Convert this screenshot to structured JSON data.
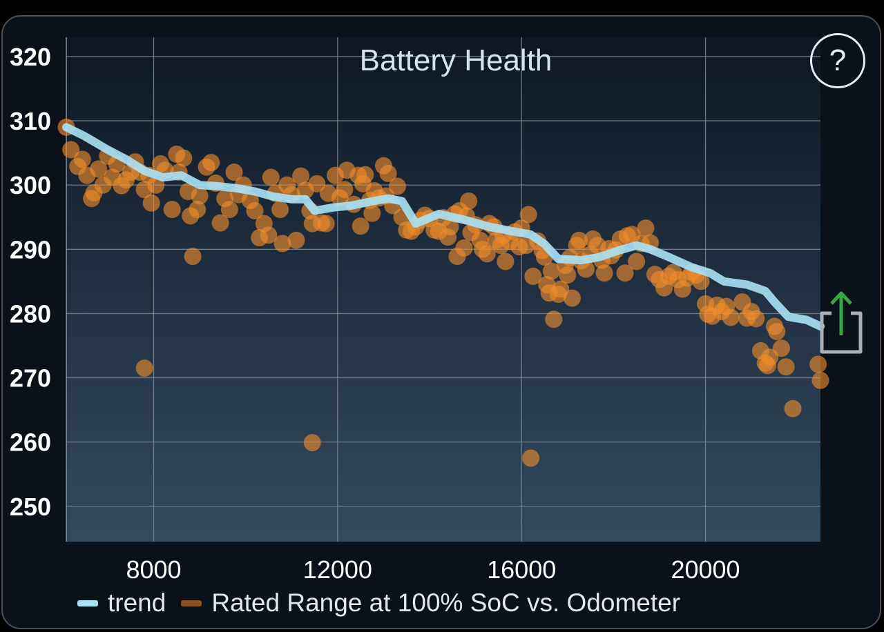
{
  "chart_data": {
    "type": "scatter",
    "title": "Battery Health",
    "xlabel": "",
    "ylabel": "",
    "xlim": [
      6100,
      22500
    ],
    "ylim": [
      244.5,
      323
    ],
    "x_ticks": [
      8000,
      12000,
      16000,
      20000
    ],
    "y_ticks": [
      250,
      260,
      270,
      280,
      290,
      300,
      310,
      320
    ],
    "grid": true,
    "legend_position": "bottom-left",
    "series": [
      {
        "name": "trend",
        "kind": "line",
        "color": "#a8e2f6",
        "points": [
          [
            6100,
            309
          ],
          [
            6500,
            307.6
          ],
          [
            7000,
            305.5
          ],
          [
            7400,
            304
          ],
          [
            7800,
            302.2
          ],
          [
            8200,
            301.2
          ],
          [
            8600,
            301.5
          ],
          [
            9000,
            300
          ],
          [
            9400,
            299.8
          ],
          [
            9800,
            299.5
          ],
          [
            10200,
            299
          ],
          [
            10600,
            298.2
          ],
          [
            11000,
            297.8
          ],
          [
            11300,
            297.8
          ],
          [
            11500,
            296
          ],
          [
            11900,
            296.5
          ],
          [
            12300,
            296.8
          ],
          [
            12700,
            297.4
          ],
          [
            13100,
            297.9
          ],
          [
            13400,
            297.5
          ],
          [
            13700,
            294
          ],
          [
            14200,
            295.5
          ],
          [
            14800,
            294.5
          ],
          [
            15300,
            293.5
          ],
          [
            15800,
            292.8
          ],
          [
            16200,
            292.3
          ],
          [
            16500,
            290.8
          ],
          [
            16800,
            288.5
          ],
          [
            17300,
            288.3
          ],
          [
            17700,
            288.8
          ],
          [
            18100,
            289.8
          ],
          [
            18500,
            290.6
          ],
          [
            18800,
            290
          ],
          [
            19200,
            288.8
          ],
          [
            19700,
            287.2
          ],
          [
            20100,
            286.3
          ],
          [
            20400,
            285
          ],
          [
            20900,
            284.5
          ],
          [
            21300,
            283.5
          ],
          [
            21500,
            281.8
          ],
          [
            21800,
            279.5
          ],
          [
            22200,
            279
          ],
          [
            22500,
            278
          ]
        ]
      },
      {
        "name": "Rated Range at 100% SoC vs. Odometer",
        "kind": "scatter",
        "color": "#f08c2c",
        "points": [
          [
            6100,
            309
          ],
          [
            6200,
            305.5
          ],
          [
            6350,
            302.9
          ],
          [
            6450,
            304
          ],
          [
            6550,
            301.5
          ],
          [
            6650,
            297.9
          ],
          [
            6700,
            298.8
          ],
          [
            6800,
            302.5
          ],
          [
            6900,
            300
          ],
          [
            7000,
            304.5
          ],
          [
            7100,
            301.2
          ],
          [
            7200,
            303.3
          ],
          [
            7300,
            299.9
          ],
          [
            7400,
            300.8
          ],
          [
            7500,
            302
          ],
          [
            7600,
            303.6
          ],
          [
            7700,
            302
          ],
          [
            7800,
            299.3
          ],
          [
            7900,
            301.5
          ],
          [
            7950,
            297.2
          ],
          [
            8050,
            300
          ],
          [
            8150,
            303.3
          ],
          [
            8250,
            302.3
          ],
          [
            8400,
            296.2
          ],
          [
            8500,
            304.8
          ],
          [
            8550,
            302
          ],
          [
            8650,
            304.2
          ],
          [
            8750,
            299
          ],
          [
            8800,
            295.2
          ],
          [
            8850,
            288.9
          ],
          [
            8950,
            296.2
          ],
          [
            9000,
            298.3
          ],
          [
            9150,
            302.8
          ],
          [
            9250,
            303.5
          ],
          [
            9350,
            300.3
          ],
          [
            9450,
            294.1
          ],
          [
            9550,
            297.9
          ],
          [
            9650,
            296.2
          ],
          [
            9750,
            302
          ],
          [
            9850,
            298.5
          ],
          [
            9950,
            300
          ],
          [
            10100,
            297.6
          ],
          [
            10200,
            296
          ],
          [
            10300,
            291.8
          ],
          [
            10400,
            294
          ],
          [
            10500,
            292.2
          ],
          [
            10550,
            301.2
          ],
          [
            10650,
            298.7
          ],
          [
            10750,
            296.2
          ],
          [
            10800,
            290.9
          ],
          [
            10900,
            300
          ],
          [
            11000,
            298.5
          ],
          [
            11100,
            291.4
          ],
          [
            11200,
            301.4
          ],
          [
            11300,
            299.2
          ],
          [
            11400,
            296
          ],
          [
            11450,
            294
          ],
          [
            11550,
            300.2
          ],
          [
            11650,
            294.1
          ],
          [
            11750,
            294
          ],
          [
            11800,
            298.7
          ],
          [
            11950,
            301.5
          ],
          [
            12050,
            298
          ],
          [
            12150,
            299.3
          ],
          [
            12200,
            302.3
          ],
          [
            12350,
            297
          ],
          [
            12450,
            301.5
          ],
          [
            12500,
            293.6
          ],
          [
            12550,
            300.2
          ],
          [
            12600,
            301.6
          ],
          [
            12700,
            297.6
          ],
          [
            12750,
            295.6
          ],
          [
            12800,
            299.1
          ],
          [
            12900,
            298
          ],
          [
            13000,
            303
          ],
          [
            13050,
            298.3
          ],
          [
            13100,
            301.8
          ],
          [
            13200,
            296.8
          ],
          [
            13300,
            299.8
          ],
          [
            13400,
            295
          ],
          [
            13500,
            293
          ],
          [
            13600,
            292.8
          ],
          [
            13700,
            293.5
          ],
          [
            13800,
            294.5
          ],
          [
            13900,
            295.3
          ],
          [
            14000,
            294.8
          ],
          [
            14100,
            293
          ],
          [
            14200,
            292.8
          ],
          [
            14300,
            294.9
          ],
          [
            14400,
            291.9
          ],
          [
            14450,
            293.5
          ],
          [
            14550,
            295.5
          ],
          [
            14600,
            288.9
          ],
          [
            14650,
            296
          ],
          [
            14750,
            290.2
          ],
          [
            14800,
            295.2
          ],
          [
            14850,
            297.5
          ],
          [
            14900,
            292.6
          ],
          [
            15000,
            293.8
          ],
          [
            15100,
            291.4
          ],
          [
            15150,
            290
          ],
          [
            15250,
            289.3
          ],
          [
            15300,
            294
          ],
          [
            15400,
            293.5
          ],
          [
            15450,
            291.4
          ],
          [
            15550,
            290.6
          ],
          [
            15600,
            292.2
          ],
          [
            15650,
            288.1
          ],
          [
            15750,
            291.2
          ],
          [
            15850,
            292.7
          ],
          [
            15950,
            290.4
          ],
          [
            16000,
            293.3
          ],
          [
            16100,
            290.6
          ],
          [
            16150,
            295.4
          ],
          [
            16200,
            257.5
          ],
          [
            16250,
            285.8
          ],
          [
            16350,
            291.3
          ],
          [
            16450,
            289.8
          ],
          [
            16500,
            288.8
          ],
          [
            16550,
            284.5
          ],
          [
            16600,
            283.2
          ],
          [
            16650,
            286.6
          ],
          [
            16700,
            279.1
          ],
          [
            16800,
            283
          ],
          [
            16850,
            283.8
          ],
          [
            16950,
            287.5
          ],
          [
            17000,
            286
          ],
          [
            17050,
            288.7
          ],
          [
            17100,
            282.4
          ],
          [
            17200,
            290.6
          ],
          [
            17250,
            291.4
          ],
          [
            17300,
            288.2
          ],
          [
            17400,
            286.9
          ],
          [
            17500,
            289.2
          ],
          [
            17550,
            291.6
          ],
          [
            17650,
            290.6
          ],
          [
            17750,
            288.3
          ],
          [
            17800,
            286.3
          ],
          [
            17900,
            290.1
          ],
          [
            17950,
            289
          ],
          [
            18050,
            289.9
          ],
          [
            18150,
            291.6
          ],
          [
            18250,
            286.3
          ],
          [
            18300,
            292.1
          ],
          [
            18400,
            292.3
          ],
          [
            18500,
            288.1
          ],
          [
            18600,
            290.9
          ],
          [
            18700,
            293.3
          ],
          [
            18800,
            291
          ],
          [
            18900,
            286.1
          ],
          [
            19000,
            285.3
          ],
          [
            19100,
            284
          ],
          [
            19200,
            285.8
          ],
          [
            19300,
            286.4
          ],
          [
            19400,
            285.3
          ],
          [
            19500,
            283.8
          ],
          [
            19600,
            285.5
          ],
          [
            19700,
            286.4
          ],
          [
            19800,
            286
          ],
          [
            19900,
            285
          ],
          [
            20000,
            281.5
          ],
          [
            20050,
            279.9
          ],
          [
            20150,
            279.6
          ],
          [
            20250,
            281.3
          ],
          [
            20350,
            280.3
          ],
          [
            20450,
            281.1
          ],
          [
            20550,
            279.4
          ],
          [
            20800,
            281.8
          ],
          [
            20900,
            279.3
          ],
          [
            21000,
            280.3
          ],
          [
            21100,
            279.2
          ],
          [
            21200,
            274.2
          ],
          [
            21300,
            272.3
          ],
          [
            21350,
            271.9
          ],
          [
            21400,
            273.2
          ],
          [
            21500,
            278
          ],
          [
            21550,
            277.2
          ],
          [
            21650,
            274.6
          ],
          [
            21750,
            271.7
          ],
          [
            21900,
            265.2
          ],
          [
            22450,
            272.1
          ],
          [
            22500,
            269.6
          ],
          [
            11450,
            259.9
          ],
          [
            7800,
            271.5
          ]
        ]
      }
    ]
  },
  "controls": {
    "help_label": "?"
  }
}
